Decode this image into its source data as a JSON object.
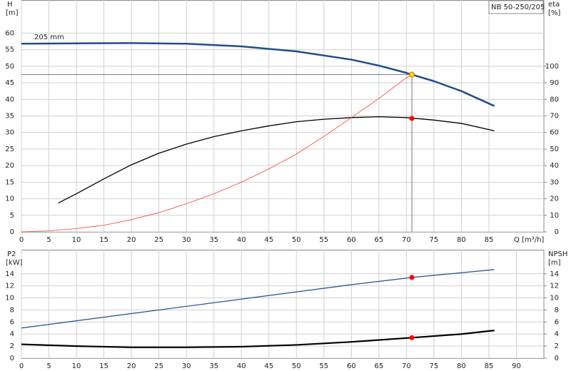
{
  "chart_data": [
    {
      "type": "line",
      "y_title": "H",
      "y_unit": "[m]",
      "y2_title": "eta",
      "y2_unit": "[%]",
      "x_title": "Q [m³/h]",
      "legend_text": "NB 50-250/205",
      "annotation": "205 mm",
      "xlim": [
        0,
        95
      ],
      "xticks": [
        0,
        5,
        10,
        15,
        20,
        25,
        30,
        35,
        40,
        45,
        50,
        55,
        60,
        65,
        70,
        75,
        80,
        85
      ],
      "ylim": [
        0,
        70
      ],
      "yticks": [
        0,
        5,
        10,
        15,
        20,
        25,
        30,
        35,
        40,
        45,
        50,
        55,
        60
      ],
      "y2lim": [
        0,
        140
      ],
      "y2ticks": [
        0,
        10,
        20,
        30,
        40,
        50,
        60,
        70,
        80,
        90,
        100
      ],
      "grid": true,
      "series": [
        {
          "color": "#1f4e8c",
          "line_width": 2.5,
          "x": [
            0,
            8,
            20,
            30,
            40,
            50,
            60,
            65,
            70,
            75,
            80,
            86
          ],
          "values": [
            56.8,
            56.9,
            57,
            56.8,
            56,
            54.5,
            52,
            50.2,
            48,
            45.5,
            42.5,
            38
          ]
        },
        {
          "color": "#000000",
          "line_width": 1.3,
          "axis": "y2",
          "x": [
            6.7,
            10,
            15,
            20,
            25,
            30,
            35,
            40,
            45,
            50,
            55,
            60,
            65,
            70,
            75,
            80,
            86
          ],
          "values": [
            17.4,
            23,
            32,
            40.5,
            47.5,
            53,
            57.5,
            61,
            64,
            66.5,
            68,
            69,
            69.5,
            69,
            67.5,
            65.5,
            61
          ]
        },
        {
          "color": "#ff3b3b",
          "line_width": 0.8,
          "x": [
            0,
            5,
            10,
            15,
            20,
            25,
            30,
            35,
            40,
            45,
            50,
            55,
            60,
            65,
            70,
            71
          ],
          "values": [
            0,
            0.3,
            1,
            2,
            3.7,
            5.8,
            8.5,
            11.5,
            15,
            19,
            23.5,
            28.8,
            34.5,
            40.3,
            46.5,
            47.5
          ]
        }
      ],
      "markers": [
        {
          "color": "#ffd700",
          "x": 71,
          "y": 47.5
        },
        {
          "color": "#ff0000",
          "axis": "y2",
          "x": 71,
          "y": 68.5
        }
      ]
    },
    {
      "type": "line",
      "y_title": "P2",
      "y_unit": "[kW]",
      "y2_title": "NPSH",
      "y2_unit": "[m]",
      "xlim": [
        0,
        95
      ],
      "xticks": [
        0,
        5,
        10,
        15,
        20,
        25,
        30,
        35,
        40,
        45,
        50,
        55,
        60,
        65,
        70,
        75,
        80,
        85,
        90
      ],
      "ylim": [
        0,
        18
      ],
      "yticks": [
        0,
        2,
        4,
        6,
        8,
        10,
        12,
        14
      ],
      "y2lim": [
        0,
        18
      ],
      "y2ticks": [
        0,
        2,
        4,
        6,
        8,
        10,
        12,
        14
      ],
      "grid": true,
      "series": [
        {
          "color": "#1f4e8c",
          "line_width": 1.2,
          "x": [
            0,
            20,
            40,
            60,
            71,
            86
          ],
          "values": [
            5,
            7.4,
            9.8,
            12.2,
            13.4,
            14.7
          ]
        },
        {
          "color": "#000000",
          "line_width": 2.2,
          "axis": "y2",
          "x": [
            0,
            10,
            20,
            30,
            40,
            50,
            60,
            71,
            80,
            86
          ],
          "values": [
            2.3,
            2,
            1.8,
            1.8,
            1.9,
            2.2,
            2.7,
            3.4,
            4,
            4.6
          ]
        }
      ],
      "markers": [
        {
          "color": "#ff0000",
          "x": 71,
          "y": 13.4
        },
        {
          "color": "#ff0000",
          "axis": "y2",
          "x": 71,
          "y": 3.4
        }
      ]
    }
  ]
}
